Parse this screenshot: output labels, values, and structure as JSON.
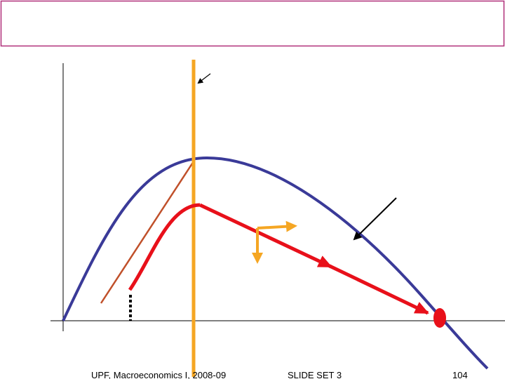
{
  "footer": {
    "left": "UPF, Macroeconomics I, 2008-09",
    "center": "SLIDE SET 3",
    "page": "104"
  }
}
